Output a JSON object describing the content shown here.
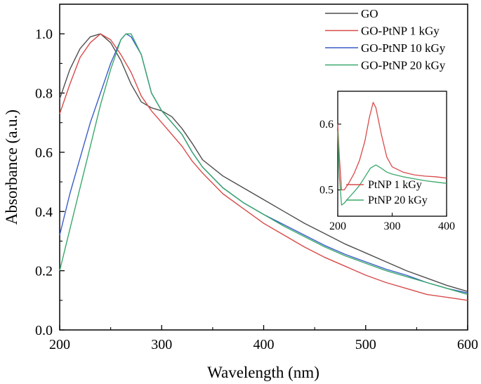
{
  "chart_data": [
    {
      "type": "line",
      "title": "",
      "xlabel": "Wavelength (nm)",
      "ylabel": "Absorbance (a.u.)",
      "xlim": [
        200,
        600
      ],
      "ylim": [
        0.0,
        1.1
      ],
      "xticks": [
        200,
        300,
        400,
        500,
        600
      ],
      "yticks": [
        0.0,
        0.2,
        0.4,
        0.6,
        0.8,
        1.0
      ],
      "xtick_labels": [
        "200",
        "300",
        "400",
        "500",
        "600"
      ],
      "ytick_labels": [
        "0.0",
        "0.2",
        "0.4",
        "0.6",
        "0.8",
        "1.0"
      ],
      "legend_position": "top-right",
      "grid": false,
      "series": [
        {
          "name": "GO",
          "color": "#4d4d4d",
          "points": [
            [
              200,
              0.78
            ],
            [
              210,
              0.88
            ],
            [
              220,
              0.95
            ],
            [
              230,
              0.99
            ],
            [
              240,
              1.0
            ],
            [
              250,
              0.97
            ],
            [
              260,
              0.91
            ],
            [
              270,
              0.83
            ],
            [
              280,
              0.77
            ],
            [
              290,
              0.75
            ],
            [
              300,
              0.74
            ],
            [
              310,
              0.72
            ],
            [
              320,
              0.68
            ],
            [
              330,
              0.63
            ],
            [
              340,
              0.575
            ],
            [
              360,
              0.52
            ],
            [
              380,
              0.48
            ],
            [
              400,
              0.44
            ],
            [
              420,
              0.4
            ],
            [
              440,
              0.36
            ],
            [
              460,
              0.325
            ],
            [
              480,
              0.29
            ],
            [
              500,
              0.26
            ],
            [
              520,
              0.23
            ],
            [
              540,
              0.2
            ],
            [
              560,
              0.175
            ],
            [
              580,
              0.15
            ],
            [
              600,
              0.13
            ]
          ]
        },
        {
          "name": "GO-PtNP 1 kGy",
          "color": "#d94a4a",
          "points": [
            [
              200,
              0.73
            ],
            [
              210,
              0.83
            ],
            [
              220,
              0.92
            ],
            [
              230,
              0.97
            ],
            [
              240,
              1.0
            ],
            [
              250,
              0.98
            ],
            [
              260,
              0.93
            ],
            [
              270,
              0.87
            ],
            [
              280,
              0.79
            ],
            [
              290,
              0.74
            ],
            [
              300,
              0.7
            ],
            [
              310,
              0.66
            ],
            [
              320,
              0.62
            ],
            [
              330,
              0.57
            ],
            [
              340,
              0.53
            ],
            [
              360,
              0.46
            ],
            [
              380,
              0.41
            ],
            [
              400,
              0.36
            ],
            [
              420,
              0.32
            ],
            [
              440,
              0.28
            ],
            [
              460,
              0.245
            ],
            [
              480,
              0.215
            ],
            [
              500,
              0.185
            ],
            [
              520,
              0.16
            ],
            [
              540,
              0.14
            ],
            [
              560,
              0.12
            ],
            [
              580,
              0.11
            ],
            [
              600,
              0.1
            ]
          ]
        },
        {
          "name": "GO-PtNP 10 kGy",
          "color": "#3a5cc8",
          "points": [
            [
              200,
              0.32
            ],
            [
              210,
              0.46
            ],
            [
              220,
              0.58
            ],
            [
              230,
              0.7
            ],
            [
              240,
              0.8
            ],
            [
              250,
              0.9
            ],
            [
              260,
              0.98
            ],
            [
              265,
              1.0
            ],
            [
              270,
              0.99
            ],
            [
              280,
              0.93
            ],
            [
              290,
              0.8
            ],
            [
              300,
              0.74
            ],
            [
              310,
              0.7
            ],
            [
              320,
              0.66
            ],
            [
              330,
              0.6
            ],
            [
              340,
              0.55
            ],
            [
              360,
              0.48
            ],
            [
              380,
              0.43
            ],
            [
              400,
              0.39
            ],
            [
              420,
              0.355
            ],
            [
              440,
              0.32
            ],
            [
              460,
              0.285
            ],
            [
              480,
              0.255
            ],
            [
              500,
              0.23
            ],
            [
              520,
              0.205
            ],
            [
              540,
              0.185
            ],
            [
              560,
              0.16
            ],
            [
              580,
              0.14
            ],
            [
              600,
              0.125
            ]
          ]
        },
        {
          "name": "GO-PtNP 20 kGy",
          "color": "#3aa86b",
          "points": [
            [
              200,
              0.2
            ],
            [
              210,
              0.34
            ],
            [
              220,
              0.48
            ],
            [
              230,
              0.62
            ],
            [
              240,
              0.76
            ],
            [
              250,
              0.88
            ],
            [
              260,
              0.98
            ],
            [
              265,
              1.0
            ],
            [
              270,
              1.0
            ],
            [
              280,
              0.93
            ],
            [
              290,
              0.8
            ],
            [
              300,
              0.74
            ],
            [
              310,
              0.7
            ],
            [
              320,
              0.66
            ],
            [
              330,
              0.6
            ],
            [
              340,
              0.55
            ],
            [
              360,
              0.48
            ],
            [
              380,
              0.43
            ],
            [
              400,
              0.39
            ],
            [
              420,
              0.35
            ],
            [
              440,
              0.315
            ],
            [
              460,
              0.28
            ],
            [
              480,
              0.25
            ],
            [
              500,
              0.225
            ],
            [
              520,
              0.2
            ],
            [
              540,
              0.18
            ],
            [
              560,
              0.16
            ],
            [
              580,
              0.14
            ],
            [
              600,
              0.12
            ]
          ]
        }
      ]
    },
    {
      "type": "line",
      "title": "",
      "xlabel": "",
      "ylabel": "",
      "xlim": [
        200,
        400
      ],
      "ylim": [
        0.46,
        0.65
      ],
      "xticks": [
        200,
        300,
        400
      ],
      "yticks": [
        0.5,
        0.6
      ],
      "xtick_labels": [
        "200",
        "300",
        "400"
      ],
      "ytick_labels": [
        "0.5",
        "0.6"
      ],
      "legend_position": "bottom-right",
      "grid": false,
      "series": [
        {
          "name": "PtNP 1 kGy",
          "color": "#d94a4a",
          "points": [
            [
              200,
              0.6
            ],
            [
              203,
              0.55
            ],
            [
              207,
              0.5
            ],
            [
              212,
              0.5
            ],
            [
              220,
              0.51
            ],
            [
              230,
              0.525
            ],
            [
              240,
              0.545
            ],
            [
              250,
              0.575
            ],
            [
              258,
              0.61
            ],
            [
              265,
              0.633
            ],
            [
              270,
              0.625
            ],
            [
              280,
              0.585
            ],
            [
              290,
              0.55
            ],
            [
              300,
              0.535
            ],
            [
              320,
              0.527
            ],
            [
              340,
              0.523
            ],
            [
              360,
              0.521
            ],
            [
              380,
              0.52
            ],
            [
              400,
              0.518
            ]
          ]
        },
        {
          "name": "PtNP 20 kGy",
          "color": "#3aa86b",
          "points": [
            [
              200,
              0.59
            ],
            [
              203,
              0.52
            ],
            [
              207,
              0.477
            ],
            [
              212,
              0.48
            ],
            [
              220,
              0.488
            ],
            [
              230,
              0.497
            ],
            [
              240,
              0.507
            ],
            [
              250,
              0.52
            ],
            [
              260,
              0.533
            ],
            [
              270,
              0.538
            ],
            [
              280,
              0.533
            ],
            [
              290,
              0.527
            ],
            [
              300,
              0.524
            ],
            [
              320,
              0.52
            ],
            [
              340,
              0.517
            ],
            [
              360,
              0.514
            ],
            [
              380,
              0.512
            ],
            [
              400,
              0.51
            ]
          ]
        }
      ]
    }
  ]
}
